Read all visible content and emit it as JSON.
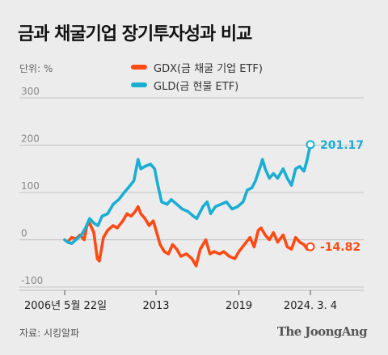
{
  "title": "금과 채굴기업 장기투자성과 비교",
  "unit_label": "단위: %",
  "source": "자료: 시킹알파",
  "logo": "The JoongAng",
  "colors": {
    "gdx": "#ff4a14",
    "gld": "#1aaed3",
    "grid": "#c4c4c4",
    "background": "#ececec"
  },
  "chart_data": {
    "type": "line",
    "title": "금과 채굴기업 장기투자성과 비교",
    "ylabel": "단위: %",
    "ylim": [
      -100,
      300
    ],
    "yticks": [
      300,
      200,
      100,
      0,
      -100
    ],
    "xlim": [
      2006.39,
      2024.17
    ],
    "grid": true,
    "legend_position": "top",
    "x_ticks": [
      {
        "x": 2006.39,
        "label": "2006년 5월 22일"
      },
      {
        "x": 2013.0,
        "label": "2013"
      },
      {
        "x": 2019.0,
        "label": "2019"
      },
      {
        "x": 2024.17,
        "label": "2024. 3. 4"
      }
    ],
    "series": [
      {
        "name": "GDX(금 채굴 기업 ETF)",
        "key": "gdx",
        "end_value": -14.82,
        "end_label": "-14.82",
        "points": [
          [
            2006.39,
            0
          ],
          [
            2006.6,
            -5
          ],
          [
            2006.9,
            5
          ],
          [
            2007.2,
            2
          ],
          [
            2007.5,
            10
          ],
          [
            2007.8,
            0
          ],
          [
            2008.0,
            30
          ],
          [
            2008.2,
            35
          ],
          [
            2008.5,
            15
          ],
          [
            2008.75,
            -40
          ],
          [
            2008.9,
            -45
          ],
          [
            2009.2,
            5
          ],
          [
            2009.5,
            20
          ],
          [
            2009.9,
            30
          ],
          [
            2010.2,
            25
          ],
          [
            2010.6,
            40
          ],
          [
            2010.9,
            55
          ],
          [
            2011.2,
            50
          ],
          [
            2011.5,
            60
          ],
          [
            2011.7,
            70
          ],
          [
            2011.9,
            55
          ],
          [
            2012.2,
            45
          ],
          [
            2012.5,
            30
          ],
          [
            2012.8,
            40
          ],
          [
            2013.0,
            20
          ],
          [
            2013.3,
            -10
          ],
          [
            2013.6,
            -25
          ],
          [
            2013.9,
            -30
          ],
          [
            2014.2,
            -10
          ],
          [
            2014.5,
            -20
          ],
          [
            2014.8,
            -35
          ],
          [
            2015.2,
            -30
          ],
          [
            2015.6,
            -40
          ],
          [
            2015.9,
            -55
          ],
          [
            2016.2,
            -20
          ],
          [
            2016.6,
            0
          ],
          [
            2016.9,
            -30
          ],
          [
            2017.2,
            -25
          ],
          [
            2017.6,
            -30
          ],
          [
            2017.9,
            -25
          ],
          [
            2018.3,
            -35
          ],
          [
            2018.7,
            -40
          ],
          [
            2019.0,
            -25
          ],
          [
            2019.4,
            -10
          ],
          [
            2019.8,
            5
          ],
          [
            2020.1,
            -15
          ],
          [
            2020.4,
            20
          ],
          [
            2020.6,
            25
          ],
          [
            2020.9,
            10
          ],
          [
            2021.2,
            0
          ],
          [
            2021.5,
            15
          ],
          [
            2021.8,
            -5
          ],
          [
            2022.2,
            10
          ],
          [
            2022.5,
            -15
          ],
          [
            2022.8,
            -20
          ],
          [
            2023.1,
            5
          ],
          [
            2023.4,
            -5
          ],
          [
            2023.7,
            -10
          ],
          [
            2023.95,
            -20
          ],
          [
            2024.17,
            -14.82
          ]
        ]
      },
      {
        "name": "GLD(금 현물 ETF)",
        "key": "gld",
        "end_value": 201.17,
        "end_label": "201.17",
        "points": [
          [
            2006.39,
            0
          ],
          [
            2006.6,
            -5
          ],
          [
            2006.9,
            -8
          ],
          [
            2007.2,
            0
          ],
          [
            2007.6,
            10
          ],
          [
            2007.9,
            25
          ],
          [
            2008.2,
            45
          ],
          [
            2008.5,
            35
          ],
          [
            2008.8,
            30
          ],
          [
            2009.1,
            50
          ],
          [
            2009.5,
            55
          ],
          [
            2009.9,
            75
          ],
          [
            2010.3,
            85
          ],
          [
            2010.7,
            100
          ],
          [
            2011.0,
            110
          ],
          [
            2011.4,
            125
          ],
          [
            2011.7,
            170
          ],
          [
            2011.9,
            150
          ],
          [
            2012.2,
            155
          ],
          [
            2012.6,
            160
          ],
          [
            2012.9,
            150
          ],
          [
            2013.1,
            120
          ],
          [
            2013.4,
            80
          ],
          [
            2013.8,
            75
          ],
          [
            2014.1,
            85
          ],
          [
            2014.5,
            75
          ],
          [
            2014.9,
            65
          ],
          [
            2015.3,
            60
          ],
          [
            2015.7,
            50
          ],
          [
            2015.95,
            45
          ],
          [
            2016.4,
            70
          ],
          [
            2016.7,
            80
          ],
          [
            2016.95,
            55
          ],
          [
            2017.3,
            70
          ],
          [
            2017.7,
            75
          ],
          [
            2018.1,
            80
          ],
          [
            2018.5,
            65
          ],
          [
            2018.9,
            70
          ],
          [
            2019.3,
            80
          ],
          [
            2019.6,
            105
          ],
          [
            2019.95,
            110
          ],
          [
            2020.2,
            125
          ],
          [
            2020.6,
            160
          ],
          [
            2020.7,
            170
          ],
          [
            2020.9,
            150
          ],
          [
            2021.2,
            130
          ],
          [
            2021.5,
            140
          ],
          [
            2021.8,
            130
          ],
          [
            2022.2,
            150
          ],
          [
            2022.5,
            130
          ],
          [
            2022.8,
            115
          ],
          [
            2023.1,
            150
          ],
          [
            2023.4,
            155
          ],
          [
            2023.7,
            145
          ],
          [
            2023.9,
            165
          ],
          [
            2024.17,
            201.17
          ]
        ]
      }
    ]
  }
}
